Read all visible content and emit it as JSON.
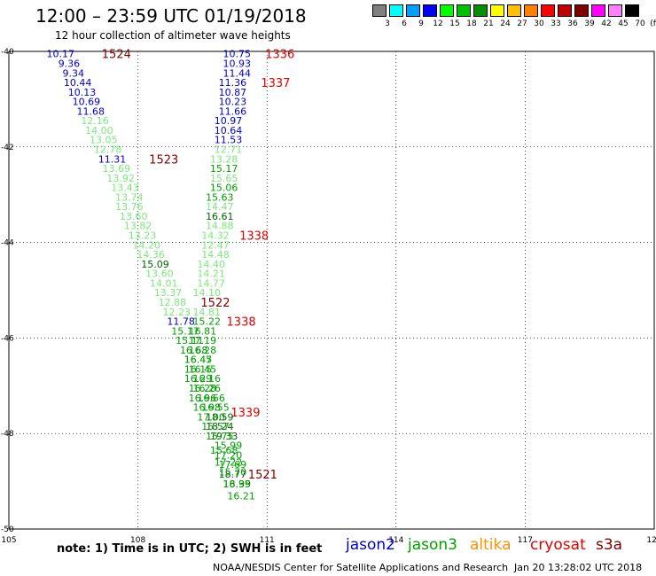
{
  "title": "12:00 – 23:59 UTC 01/19/2018",
  "subtitle": "12 hour collection of altimeter wave heights",
  "legend": {
    "colors": [
      "#808080",
      "#00ffff",
      "#00a0ff",
      "#0000ff",
      "#00ff00",
      "#00c000",
      "#009000",
      "#ffff00",
      "#ffc000",
      "#ff8000",
      "#ff0000",
      "#c00000",
      "#800000",
      "#ff00ff",
      "#ff80ff",
      "#000000"
    ],
    "labels": [
      "3",
      "6",
      "9",
      "12",
      "15",
      "18",
      "21",
      "24",
      "27",
      "30",
      "33",
      "36",
      "39",
      "42",
      "45",
      "70"
    ],
    "unit": "(ft)"
  },
  "note": "note: 1) Time is in UTC; 2) SWH is in feet",
  "satellites": [
    {
      "name": "jason2",
      "color": "#0000c8"
    },
    {
      "name": "jason3",
      "color": "#00a000"
    },
    {
      "name": "altika",
      "color": "#ff9000"
    },
    {
      "name": "cryosat",
      "color": "#e00000"
    },
    {
      "name": "s3a",
      "color": "#800000"
    }
  ],
  "credit": "NOAA/NESDIS Center for Satellite Applications and Research",
  "timestamp": "Jan 20 13:28:02 UTC 2018",
  "chart_data": {
    "type": "scatter",
    "title": "12:00 – 23:59 UTC 01/19/2018",
    "subtitle": "12 hour collection of altimeter wave heights",
    "xlabel": "",
    "ylabel": "",
    "xlim": [
      105,
      120
    ],
    "ylim": [
      -50,
      -40
    ],
    "x_ticks": [
      "105",
      "108",
      "111",
      "114",
      "117",
      "120"
    ],
    "y_ticks": [
      "-40",
      "-42",
      "-44",
      "-46",
      "-48",
      "-50"
    ],
    "grid": true,
    "colors": {
      "jason2": "#0000c8",
      "light": "#7ce87c",
      "mid": "#00a000",
      "dark": "#006400",
      "cryosat": "#e00000",
      "s3a": "#800000"
    },
    "series": [
      {
        "name": "track 1",
        "points": [
          {
            "x": 106.2,
            "y": -40.05,
            "v": "10.17",
            "c": "jason2"
          },
          {
            "x": 106.4,
            "y": -40.25,
            "v": "9.36",
            "c": "jason2"
          },
          {
            "x": 106.5,
            "y": -40.45,
            "v": "9.34",
            "c": "jason2"
          },
          {
            "x": 106.6,
            "y": -40.65,
            "v": "10.44",
            "c": "jason2"
          },
          {
            "x": 106.7,
            "y": -40.85,
            "v": "10.13",
            "c": "jason2"
          },
          {
            "x": 106.8,
            "y": -41.05,
            "v": "10.69",
            "c": "jason2"
          },
          {
            "x": 106.9,
            "y": -41.25,
            "v": "11.68",
            "c": "jason2"
          },
          {
            "x": 107.0,
            "y": -41.45,
            "v": "12.16",
            "c": "light"
          },
          {
            "x": 107.1,
            "y": -41.65,
            "v": "14.00",
            "c": "light"
          },
          {
            "x": 107.2,
            "y": -41.85,
            "v": "13.05",
            "c": "light"
          },
          {
            "x": 107.3,
            "y": -42.05,
            "v": "12.78",
            "c": "light"
          },
          {
            "x": 107.4,
            "y": -42.25,
            "v": "11.31",
            "c": "jason2"
          },
          {
            "x": 107.5,
            "y": -42.45,
            "v": "13.69",
            "c": "light"
          },
          {
            "x": 107.6,
            "y": -42.65,
            "v": "13.92",
            "c": "light"
          },
          {
            "x": 107.7,
            "y": -42.85,
            "v": "13.43",
            "c": "light"
          },
          {
            "x": 107.8,
            "y": -43.05,
            "v": "13.74",
            "c": "light"
          },
          {
            "x": 107.8,
            "y": -43.25,
            "v": "13.76",
            "c": "light"
          },
          {
            "x": 107.9,
            "y": -43.45,
            "v": "13.60",
            "c": "light"
          },
          {
            "x": 108.0,
            "y": -43.65,
            "v": "13.82",
            "c": "light"
          },
          {
            "x": 108.1,
            "y": -43.85,
            "v": "13.23",
            "c": "light"
          },
          {
            "x": 108.2,
            "y": -44.05,
            "v": "14.20",
            "c": "light"
          },
          {
            "x": 108.3,
            "y": -44.25,
            "v": "14.36",
            "c": "light"
          },
          {
            "x": 108.4,
            "y": -44.45,
            "v": "15.09",
            "c": "dark"
          },
          {
            "x": 108.5,
            "y": -44.65,
            "v": "13.60",
            "c": "light"
          },
          {
            "x": 108.6,
            "y": -44.85,
            "v": "14.01",
            "c": "light"
          },
          {
            "x": 108.7,
            "y": -45.05,
            "v": "13.37",
            "c": "light"
          },
          {
            "x": 108.8,
            "y": -45.25,
            "v": "12.88",
            "c": "light"
          },
          {
            "x": 108.9,
            "y": -45.45,
            "v": "12.23",
            "c": "light"
          },
          {
            "x": 109.0,
            "y": -45.65,
            "v": "11.78",
            "c": "jason2"
          },
          {
            "x": 109.1,
            "y": -45.85,
            "v": "15.17",
            "c": "mid"
          },
          {
            "x": 109.2,
            "y": -46.05,
            "v": "15.11",
            "c": "mid"
          },
          {
            "x": 109.3,
            "y": -46.25,
            "v": "16.68",
            "c": "mid"
          },
          {
            "x": 109.4,
            "y": -46.45,
            "v": "16.47",
            "c": "mid"
          },
          {
            "x": 109.5,
            "y": -46.65,
            "v": "16.45",
            "c": "mid"
          },
          {
            "x": 109.6,
            "y": -46.85,
            "v": "16.16",
            "c": "mid"
          },
          {
            "x": 109.6,
            "y": -47.05,
            "v": "16.26",
            "c": "mid"
          },
          {
            "x": 109.7,
            "y": -47.25,
            "v": "16.66",
            "c": "mid"
          },
          {
            "x": 109.8,
            "y": -47.45,
            "v": "16.55",
            "c": "mid"
          },
          {
            "x": 109.9,
            "y": -47.65,
            "v": "18.59",
            "c": "dark"
          },
          {
            "x": 109.9,
            "y": -47.85,
            "v": "18.24",
            "c": "dark"
          },
          {
            "x": 110.0,
            "y": -48.05,
            "v": "19.33",
            "c": "dark"
          },
          {
            "x": 110.1,
            "y": -48.25,
            "v": "15.99",
            "c": "mid"
          },
          {
            "x": 110.1,
            "y": -48.45,
            "v": "17.20",
            "c": "mid"
          },
          {
            "x": 110.2,
            "y": -48.65,
            "v": "17.69",
            "c": "mid"
          },
          {
            "x": 110.2,
            "y": -48.85,
            "v": "18.77",
            "c": "dark"
          },
          {
            "x": 110.3,
            "y": -49.05,
            "v": "18.39",
            "c": "dark"
          }
        ]
      },
      {
        "name": "track 2",
        "points": [
          {
            "x": 110.3,
            "y": -40.05,
            "v": "10.75",
            "c": "jason2"
          },
          {
            "x": 110.3,
            "y": -40.25,
            "v": "10.93",
            "c": "jason2"
          },
          {
            "x": 110.3,
            "y": -40.45,
            "v": "11.44",
            "c": "jason2"
          },
          {
            "x": 110.2,
            "y": -40.65,
            "v": "11.36",
            "c": "jason2"
          },
          {
            "x": 110.2,
            "y": -40.85,
            "v": "10.87",
            "c": "jason2"
          },
          {
            "x": 110.2,
            "y": -41.05,
            "v": "10.23",
            "c": "jason2"
          },
          {
            "x": 110.2,
            "y": -41.25,
            "v": "11.66",
            "c": "jason2"
          },
          {
            "x": 110.1,
            "y": -41.45,
            "v": "10.97",
            "c": "jason2"
          },
          {
            "x": 110.1,
            "y": -41.65,
            "v": "10.64",
            "c": "jason2"
          },
          {
            "x": 110.1,
            "y": -41.85,
            "v": "11.53",
            "c": "jason2"
          },
          {
            "x": 110.1,
            "y": -42.05,
            "v": "12.71",
            "c": "light"
          },
          {
            "x": 110.0,
            "y": -42.25,
            "v": "13.28",
            "c": "light"
          },
          {
            "x": 110.0,
            "y": -42.45,
            "v": "15.17",
            "c": "mid"
          },
          {
            "x": 110.0,
            "y": -42.65,
            "v": "15.65",
            "c": "light"
          },
          {
            "x": 110.0,
            "y": -42.85,
            "v": "15.06",
            "c": "mid"
          },
          {
            "x": 109.9,
            "y": -43.05,
            "v": "15.63",
            "c": "mid"
          },
          {
            "x": 109.9,
            "y": -43.25,
            "v": "14.47",
            "c": "light"
          },
          {
            "x": 109.9,
            "y": -43.45,
            "v": "16.61",
            "c": "dark"
          },
          {
            "x": 109.9,
            "y": -43.65,
            "v": "14.88",
            "c": "light"
          },
          {
            "x": 109.8,
            "y": -43.85,
            "v": "14.32",
            "c": "light"
          },
          {
            "x": 109.8,
            "y": -44.05,
            "v": "12.47",
            "c": "light"
          },
          {
            "x": 109.8,
            "y": -44.25,
            "v": "14.48",
            "c": "light"
          },
          {
            "x": 109.7,
            "y": -44.45,
            "v": "14.40",
            "c": "light"
          },
          {
            "x": 109.7,
            "y": -44.65,
            "v": "14.21",
            "c": "light"
          },
          {
            "x": 109.7,
            "y": -44.85,
            "v": "14.77",
            "c": "light"
          },
          {
            "x": 109.6,
            "y": -45.05,
            "v": "14.10",
            "c": "light"
          },
          {
            "x": 109.6,
            "y": -45.45,
            "v": "14.81",
            "c": "light"
          },
          {
            "x": 109.6,
            "y": -45.65,
            "v": "15.22",
            "c": "mid"
          },
          {
            "x": 109.5,
            "y": -45.85,
            "v": "16.81",
            "c": "mid"
          },
          {
            "x": 109.5,
            "y": -46.05,
            "v": "17.19",
            "c": "mid"
          },
          {
            "x": 109.5,
            "y": -46.25,
            "v": "16.28",
            "c": "mid"
          },
          {
            "x": 109.4,
            "y": -46.45,
            "v": "16.45",
            "c": "mid"
          },
          {
            "x": 109.4,
            "y": -46.65,
            "v": "16.15",
            "c": "mid"
          },
          {
            "x": 109.4,
            "y": -46.85,
            "v": "16.29",
            "c": "mid"
          },
          {
            "x": 109.5,
            "y": -47.05,
            "v": "16.28",
            "c": "mid"
          },
          {
            "x": 109.5,
            "y": -47.25,
            "v": "16.96",
            "c": "mid"
          },
          {
            "x": 109.6,
            "y": -47.45,
            "v": "16.98",
            "c": "mid"
          },
          {
            "x": 109.7,
            "y": -47.65,
            "v": "17.00",
            "c": "mid"
          },
          {
            "x": 109.8,
            "y": -47.85,
            "v": "15.57",
            "c": "mid"
          },
          {
            "x": 109.9,
            "y": -48.05,
            "v": "15.75",
            "c": "mid"
          },
          {
            "x": 110.0,
            "y": -48.35,
            "v": "15.68",
            "c": "mid"
          },
          {
            "x": 110.1,
            "y": -48.6,
            "v": "17.22",
            "c": "mid"
          },
          {
            "x": 110.2,
            "y": -48.8,
            "v": "15.70",
            "c": "mid"
          },
          {
            "x": 110.3,
            "y": -49.05,
            "v": "16.95",
            "c": "mid"
          },
          {
            "x": 110.4,
            "y": -49.3,
            "v": "16.21",
            "c": "mid"
          }
        ]
      }
    ],
    "annotations": [
      {
        "x": 107.5,
        "y": -40.05,
        "text": "1524",
        "c": "s3a"
      },
      {
        "x": 111.3,
        "y": -40.05,
        "text": "1336",
        "c": "cryosat"
      },
      {
        "x": 111.2,
        "y": -40.65,
        "text": "1337",
        "c": "cryosat"
      },
      {
        "x": 108.6,
        "y": -42.25,
        "text": "1523",
        "c": "s3a"
      },
      {
        "x": 110.7,
        "y": -43.85,
        "text": "1338",
        "c": "cryosat"
      },
      {
        "x": 109.8,
        "y": -45.25,
        "text": "1522",
        "c": "s3a"
      },
      {
        "x": 110.4,
        "y": -45.65,
        "text": "1338",
        "c": "cryosat"
      },
      {
        "x": 110.5,
        "y": -47.55,
        "text": "1339",
        "c": "cryosat"
      },
      {
        "x": 110.9,
        "y": -48.85,
        "text": "1521",
        "c": "s3a"
      }
    ]
  }
}
